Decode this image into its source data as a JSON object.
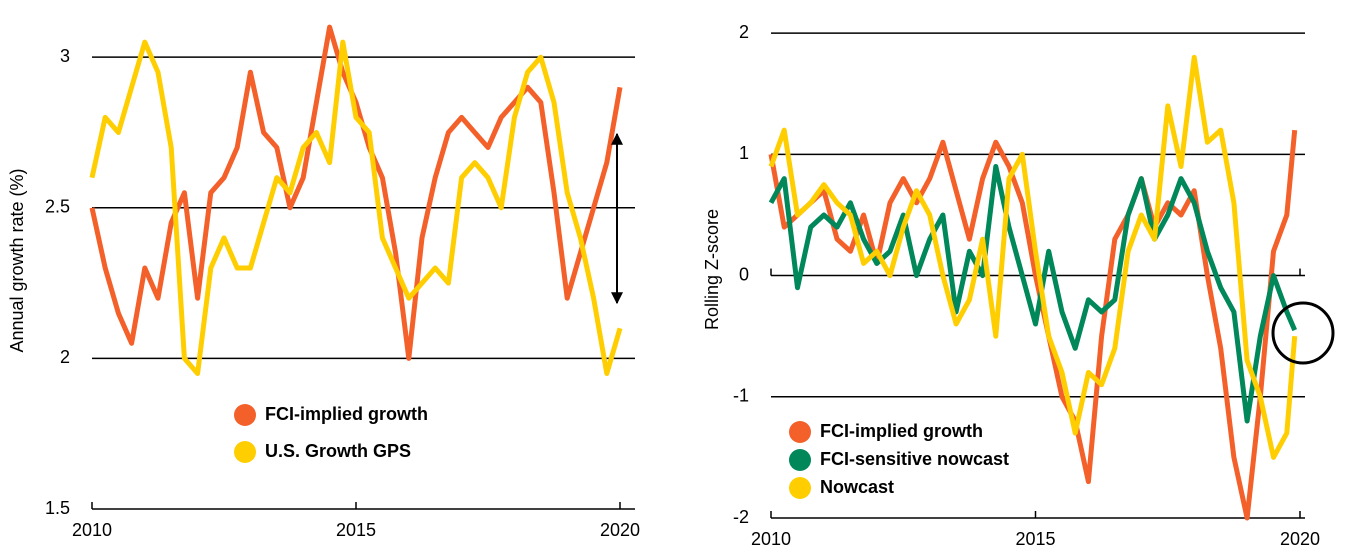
{
  "chart_data": [
    {
      "type": "line",
      "y_label": "Annual growth rate (%)",
      "x": [
        2010,
        2010.25,
        2010.5,
        2010.75,
        2011,
        2011.25,
        2011.5,
        2011.75,
        2012,
        2012.25,
        2012.5,
        2012.75,
        2013,
        2013.25,
        2013.5,
        2013.75,
        2014,
        2014.25,
        2014.5,
        2014.75,
        2015,
        2015.25,
        2015.5,
        2015.75,
        2016,
        2016.25,
        2016.5,
        2016.75,
        2017,
        2017.25,
        2017.5,
        2017.75,
        2018,
        2018.25,
        2018.5,
        2018.75,
        2019,
        2019.25,
        2019.5,
        2019.75,
        2020
      ],
      "xlim": [
        2010,
        2020
      ],
      "xticks": [
        2010,
        2015,
        2020
      ],
      "ylim": [
        1.5,
        3.15
      ],
      "yticks": [
        1.5,
        2,
        2.5,
        3
      ],
      "series": [
        {
          "name": "FCI-implied growth",
          "color": "#f4602a",
          "values": [
            2.5,
            2.3,
            2.15,
            2.05,
            2.3,
            2.2,
            2.45,
            2.55,
            2.2,
            2.55,
            2.6,
            2.7,
            2.95,
            2.75,
            2.7,
            2.5,
            2.6,
            2.85,
            3.1,
            2.95,
            2.85,
            2.7,
            2.6,
            2.35,
            2.0,
            2.4,
            2.6,
            2.75,
            2.8,
            2.75,
            2.7,
            2.8,
            2.85,
            2.9,
            2.85,
            2.55,
            2.2,
            2.35,
            2.5,
            2.65,
            2.9
          ]
        },
        {
          "name": "U.S. Growth GPS",
          "color": "#ffce00",
          "values": [
            2.6,
            2.8,
            2.75,
            2.9,
            3.05,
            2.95,
            2.7,
            2.0,
            1.95,
            2.3,
            2.4,
            2.3,
            2.3,
            2.45,
            2.6,
            2.55,
            2.7,
            2.75,
            2.65,
            3.05,
            2.8,
            2.75,
            2.4,
            2.3,
            2.2,
            2.25,
            2.3,
            2.25,
            2.6,
            2.65,
            2.6,
            2.5,
            2.8,
            2.95,
            3.0,
            2.85,
            2.55,
            2.4,
            2.2,
            1.95,
            2.1
          ]
        }
      ]
    },
    {
      "type": "line",
      "y_label": "Rolling Z-score",
      "x": [
        2010,
        2010.25,
        2010.5,
        2010.75,
        2011,
        2011.25,
        2011.5,
        2011.75,
        2012,
        2012.25,
        2012.5,
        2012.75,
        2013,
        2013.25,
        2013.5,
        2013.75,
        2014,
        2014.25,
        2014.5,
        2014.75,
        2015,
        2015.25,
        2015.5,
        2015.75,
        2016,
        2016.25,
        2016.5,
        2016.75,
        2017,
        2017.25,
        2017.5,
        2017.75,
        2018,
        2018.25,
        2018.5,
        2018.75,
        2019,
        2019.25,
        2019.5,
        2019.75,
        2019.9
      ],
      "xlim": [
        2010,
        2020
      ],
      "xticks": [
        2010,
        2015,
        2020
      ],
      "ylim": [
        -2,
        2.1
      ],
      "yticks": [
        -2,
        -1,
        0,
        1,
        2
      ],
      "series": [
        {
          "name": "FCI-implied growth",
          "color": "#f4602a",
          "values": [
            1.0,
            0.4,
            0.5,
            0.6,
            0.7,
            0.3,
            0.2,
            0.5,
            0.1,
            0.6,
            0.8,
            0.6,
            0.8,
            1.1,
            0.7,
            0.3,
            0.8,
            1.1,
            0.9,
            0.6,
            0.0,
            -0.5,
            -1.0,
            -1.2,
            -1.7,
            -0.5,
            0.3,
            0.5,
            0.8,
            0.4,
            0.6,
            0.5,
            0.7,
            0.0,
            -0.6,
            -1.5,
            -2.0,
            -1.0,
            0.2,
            0.5,
            1.2
          ]
        },
        {
          "name": "FCI-sensitive nowcast",
          "color": "#00875a",
          "values": [
            0.6,
            0.8,
            -0.1,
            0.4,
            0.5,
            0.4,
            0.6,
            0.3,
            0.1,
            0.2,
            0.5,
            0.0,
            0.3,
            0.5,
            -0.3,
            0.2,
            0.0,
            0.9,
            0.4,
            0.0,
            -0.4,
            0.2,
            -0.3,
            -0.6,
            -0.2,
            -0.3,
            -0.2,
            0.5,
            0.8,
            0.3,
            0.5,
            0.8,
            0.6,
            0.2,
            -0.1,
            -0.3,
            -1.2,
            -0.5,
            0.0,
            -0.3,
            -0.45
          ]
        },
        {
          "name": "Nowcast",
          "color": "#ffce00",
          "values": [
            0.9,
            1.2,
            0.5,
            0.6,
            0.75,
            0.6,
            0.5,
            0.1,
            0.2,
            0.0,
            0.4,
            0.7,
            0.5,
            0.0,
            -0.4,
            -0.2,
            0.3,
            -0.5,
            0.8,
            1.0,
            0.2,
            -0.5,
            -0.8,
            -1.3,
            -0.8,
            -0.9,
            -0.6,
            0.2,
            0.5,
            0.3,
            1.4,
            0.9,
            1.8,
            1.1,
            1.2,
            0.6,
            -0.7,
            -1.0,
            -1.5,
            -1.3,
            -0.5
          ]
        }
      ]
    }
  ]
}
